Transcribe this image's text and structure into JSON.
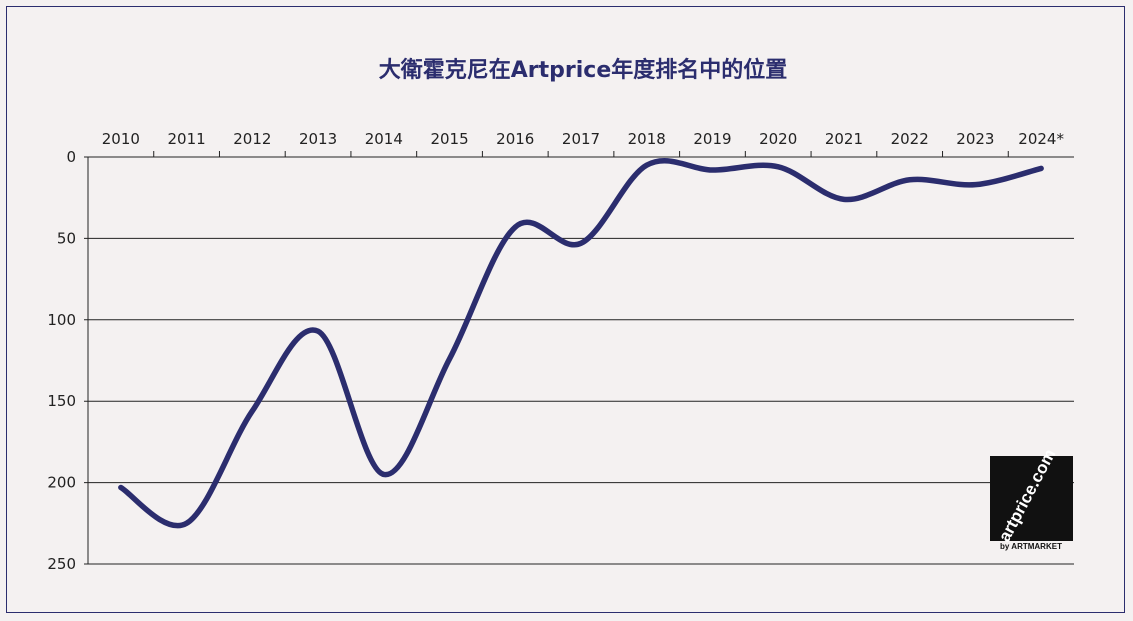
{
  "chart_data": {
    "type": "line",
    "title": "大衛霍克尼在Artprice年度排名中的位置",
    "categories": [
      "2010",
      "2011",
      "2012",
      "2013",
      "2014",
      "2015",
      "2016",
      "2017",
      "2018",
      "2019",
      "2020",
      "2021",
      "2022",
      "2023",
      "2024*"
    ],
    "series": [
      {
        "values": [
          203,
          225,
          156,
          107,
          195,
          124,
          43,
          53,
          5,
          8,
          6,
          26,
          14,
          17,
          7
        ]
      }
    ],
    "ylim": [
      0,
      250
    ],
    "yticks": [
      0,
      50,
      100,
      150,
      200,
      250
    ],
    "y_inverted": true,
    "xaxis_position": "top",
    "grid": true,
    "line_color": "#2b2d6e"
  },
  "logo": {
    "text": "artprice.com",
    "byline": "by ARTMARKET"
  }
}
